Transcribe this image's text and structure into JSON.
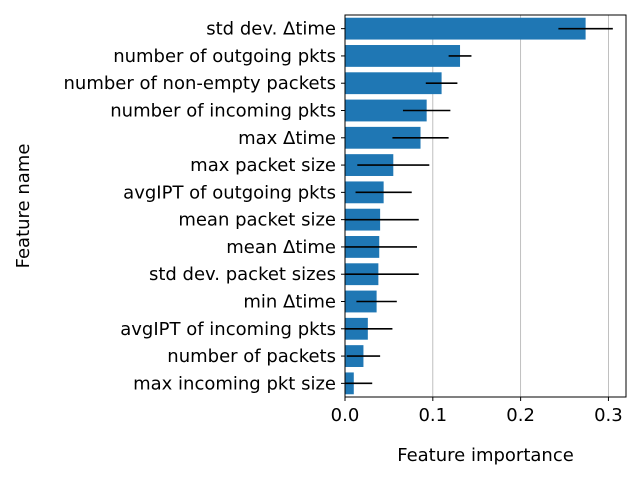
{
  "chart_data": {
    "type": "bar",
    "orientation": "horizontal",
    "xlabel": "Feature importance",
    "ylabel": "Feature name",
    "xlim": [
      0.0,
      0.32
    ],
    "xticks": [
      0.0,
      0.1,
      0.2,
      0.3
    ],
    "xtick_labels": [
      "0.0",
      "0.1",
      "0.2",
      "0.3"
    ],
    "grid": "vertical",
    "bar_color": "#1f77b4",
    "error_color": "#000000",
    "grid_color": "#b0b0b0",
    "categories": [
      "std dev. Δtime",
      "number of outgoing pkts",
      "number of non-empty packets",
      "number of incoming pkts",
      "max Δtime",
      "max packet size",
      "avgIPT of outgoing pkts",
      "mean packet size",
      "mean Δtime",
      "std dev. packet sizes",
      "min Δtime",
      "avgIPT of incoming pkts",
      "number of packets",
      "max incoming pkt size"
    ],
    "values": [
      0.274,
      0.131,
      0.11,
      0.093,
      0.086,
      0.055,
      0.044,
      0.04,
      0.039,
      0.038,
      0.036,
      0.026,
      0.021,
      0.01
    ],
    "errors": [
      0.031,
      0.013,
      0.018,
      0.027,
      0.032,
      0.041,
      0.032,
      0.044,
      0.043,
      0.046,
      0.023,
      0.028,
      0.019,
      0.021
    ]
  }
}
